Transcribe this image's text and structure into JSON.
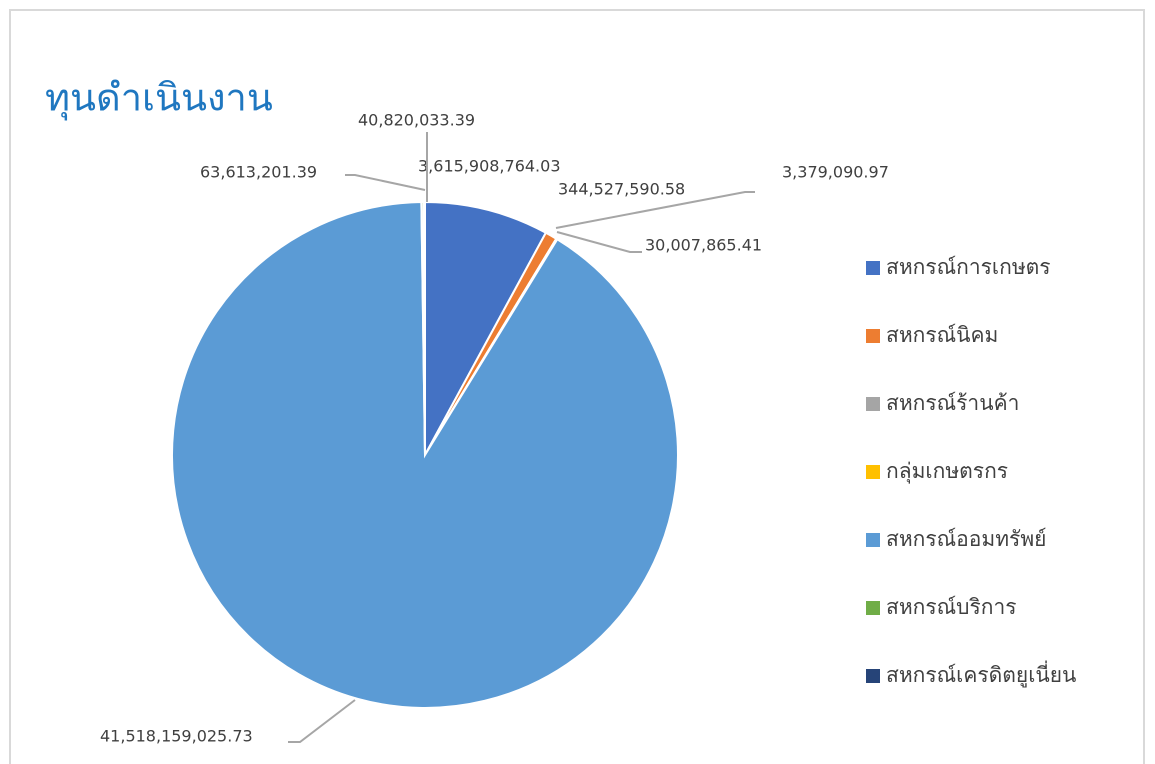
{
  "chart_data": {
    "type": "pie",
    "title": "ทุนดำเนินงาน",
    "categories": [
      "สหกรณ์การเกษตร",
      "สหกรณ์นิคม",
      "สหกรณ์ร้านค้า",
      "กลุ่มเกษตรกร",
      "สหกรณ์ออมทรัพย์",
      "สหกรณ์บริการ",
      "สหกรณ์เครดิตยูเนี่ยน"
    ],
    "values": [
      3615908764.03,
      344527590.58,
      3379090.97,
      30007865.41,
      41518159025.73,
      63613201.39,
      40820033.39
    ],
    "value_labels": [
      "3,615,908,764.03",
      "344,527,590.58",
      "3,379,090.97",
      "30,007,865.41",
      "41,518,159,025.73",
      "63,613,201.39",
      "40,820,033.39"
    ],
    "colors": [
      "#4472c4",
      "#ed7d31",
      "#a5a5a5",
      "#ffc000",
      "#5b9bd5",
      "#70ad47",
      "#264478"
    ],
    "legend": "right"
  }
}
